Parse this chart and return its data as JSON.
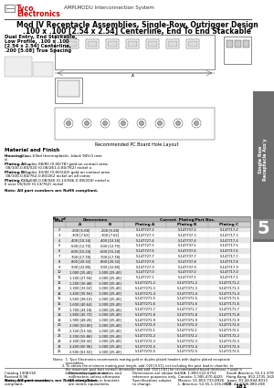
{
  "title_line1": "Mod IV Receptacle Assemblies, Single-Row, Outrigger Design",
  "title_line2": ".100 x .100 [2.54 x 2.54] Centerline, End To End Stackable",
  "header_brand": "Tyco",
  "header_brand2": "Electronics",
  "header_system": "AMPLMODU Interconnection System",
  "left_title": "Dual Entry, End Stackable,",
  "left_line2": "Low Profile, .100 x .100",
  "left_line3": "[2.54 x 2.54] Centerline,",
  "left_line4": ".200 [5.08] True Spacing",
  "mat_title": "Material and Finish",
  "mat_housing": "Housing: — Glass-filled thermoplastic, black 94V-0 rated",
  "mat_platA": "Plating A: — Duplex 08/80 (0.06/78) gold on contact area, 08/100-0.80/020 (0.08/261-0.80/762) nickel on all contact area all over .80/020 (0.8/127) nickel",
  "mat_platB": "Plating B: — Duplex 30/40 (0.80/243) gold on contact area 08/100-0.80/762-0.80/262 nickel on all contact area of every 30/020 (0.60/127) nickel",
  "mat_platC": "Plating C: — 05/048-0.08/040 (0.13/046-0.08/204) nickel all over 05/020 (0.13/762) nickel",
  "note_parts": "Note: All part numbers are RoHS compliant.",
  "table_rows": [
    [
      "2",
      ".200 [5.08]",
      ".200 [5.08]",
      "5-147727-2",
      "5-147737-2",
      "5-147717-2"
    ],
    [
      "3",
      ".300 [7.62]",
      ".300 [7.62]",
      "5-147727-3",
      "5-147737-3",
      "5-147717-3"
    ],
    [
      "4",
      ".400 [10.16]",
      ".400 [10.16]",
      "5-147727-4",
      "5-147737-4",
      "5-147717-4"
    ],
    [
      "5",
      ".500 [12.70]",
      ".500 [12.70]",
      "5-147727-5",
      "5-147737-5",
      "5-147717-5"
    ],
    [
      "6",
      ".600 [15.24]",
      ".600 [15.24]",
      "5-147727-6",
      "5-147737-6",
      "5-147717-6"
    ],
    [
      "7",
      ".700 [17.78]",
      ".700 [17.78]",
      "5-147727-7",
      "5-147737-7",
      "5-147717-7"
    ],
    [
      "8",
      ".800 [20.32]",
      ".800 [20.32]",
      "5-147727-8",
      "5-147737-8",
      "5-147717-8"
    ],
    [
      "9",
      ".900 [22.86]",
      ".900 [22.86]",
      "5-147727-9",
      "5-147737-9",
      "5-147717-9"
    ],
    [
      "10",
      "1.000 [25.40]",
      "1.000 [25.40]",
      "5-147727-0",
      "5-147737-0",
      "5-147717-0"
    ],
    [
      "11",
      "1.100 [27.94]",
      "1.000 [25.40]",
      "5-147727-1",
      "5-147737-1",
      "5-147717-1"
    ],
    [
      "12",
      "1.200 [30.48]",
      "1.000 [25.40]",
      "5-1477271-2",
      "5-1477371-2",
      "5-1477171-2"
    ],
    [
      "13",
      "1.300 [33.02]",
      "1.000 [25.40]",
      "5-1477271-3",
      "5-1477371-3",
      "5-1477171-3"
    ],
    [
      "14",
      "1.400 [35.56]",
      "1.000 [25.40]",
      "5-1477271-4",
      "5-1477371-4",
      "5-1477171-4"
    ],
    [
      "15",
      "1.500 [38.10]",
      "1.000 [25.40]",
      "5-1477271-5",
      "5-1477371-5",
      "5-1477171-5"
    ],
    [
      "16",
      "1.600 [40.64]",
      "1.000 [25.40]",
      "5-1477271-6",
      "5-1477371-6",
      "5-1477171-6"
    ],
    [
      "17",
      "1.700 [43.18]",
      "1.000 [25.40]",
      "5-1477271-7",
      "5-1477371-7",
      "5-1477171-7"
    ],
    [
      "18",
      "1.800 [45.72]",
      "1.000 [25.40]",
      "5-1477271-8",
      "5-1477371-8",
      "5-1477171-8"
    ],
    [
      "19",
      "1.900 [48.26]",
      "1.000 [25.40]",
      "5-1477271-9",
      "5-1477371-9",
      "5-1477171-9"
    ],
    [
      "20",
      "2.000 [50.80]",
      "1.000 [25.40]",
      "5-1477272-0",
      "5-1477372-0",
      "5-1477172-0"
    ],
    [
      "21",
      "2.100 [53.34]",
      "1.000 [25.40]",
      "5-1477272-1",
      "5-1477372-1",
      "5-1477172-1"
    ],
    [
      "22",
      "2.200 [55.88]",
      "1.000 [25.40]",
      "5-1477272-2",
      "5-1477372-2",
      "5-1477172-2"
    ],
    [
      "23",
      "2.300 [58.42]",
      "1.000 [25.40]",
      "5-1477272-3",
      "5-1477372-3",
      "5-1477172-3"
    ],
    [
      "24",
      "2.400 [60.96]",
      "1.000 [25.40]",
      "5-1477272-4",
      "5-1477372-4",
      "5-1477172-4"
    ],
    [
      "25",
      "2.500 [63.50]",
      "1.000 [25.40]",
      "5-1477272-5",
      "5-1477372-5",
      "5-1477172-5"
    ]
  ],
  "notes_text": [
    "Notes:  1. Tyco Electronics recommends mating gold or duplex plated headers with duplex plated receptacle",
    "            assemblies.",
    "         2. To obtain the minimum mating post length, add .020 [0.51], not including the post lead in chamfer, to",
    "            the maximum post butt contact dimension and add .150 [3.81] for recommended board thickness if used in",
    "            bottom-entry applications."
  ],
  "footer_catalog": "Catalog 1308318",
  "footer_revised": "Revised 8-98",
  "footer_web": "www.tycoelectronics.com",
  "footer_dim1": "Dimensions are in inches and",
  "footer_dim2": "millimeters unless otherwise",
  "footer_dim3": "specified. Values in brackets",
  "footer_dim4": "are metric equivalents.",
  "footer_ref1": "Dimensions are shown for",
  "footer_ref2": "reference purposes only.",
  "footer_ref3": "Specifications subject",
  "footer_ref4": "to change.",
  "footer_usa": "USA: 1-800-522-6752",
  "footer_canada": "Canada: 1-905-470-4425",
  "footer_mexico": "Mexico: 01-800-733-8926",
  "footer_la": "L. America: 52-55-1-106-0803",
  "footer_sa": "South America: 55-11-3709-9800",
  "footer_hk": "Hong Kong: 852-2735-1628",
  "footer_japan": "Japan: 81-44-844-8013",
  "footer_uk": "UK: 44-8706-080-208",
  "page_num": "181",
  "section_num": "5",
  "section_label": "Single Row\nReceptacle Ass'y",
  "section_bg": "#6d6d6d",
  "bg_color": "#ffffff",
  "table_header_bg": "#b0b0b0",
  "table_subhdr_bg": "#d0d0d0",
  "table_alt_bg": "#e8e8e8"
}
